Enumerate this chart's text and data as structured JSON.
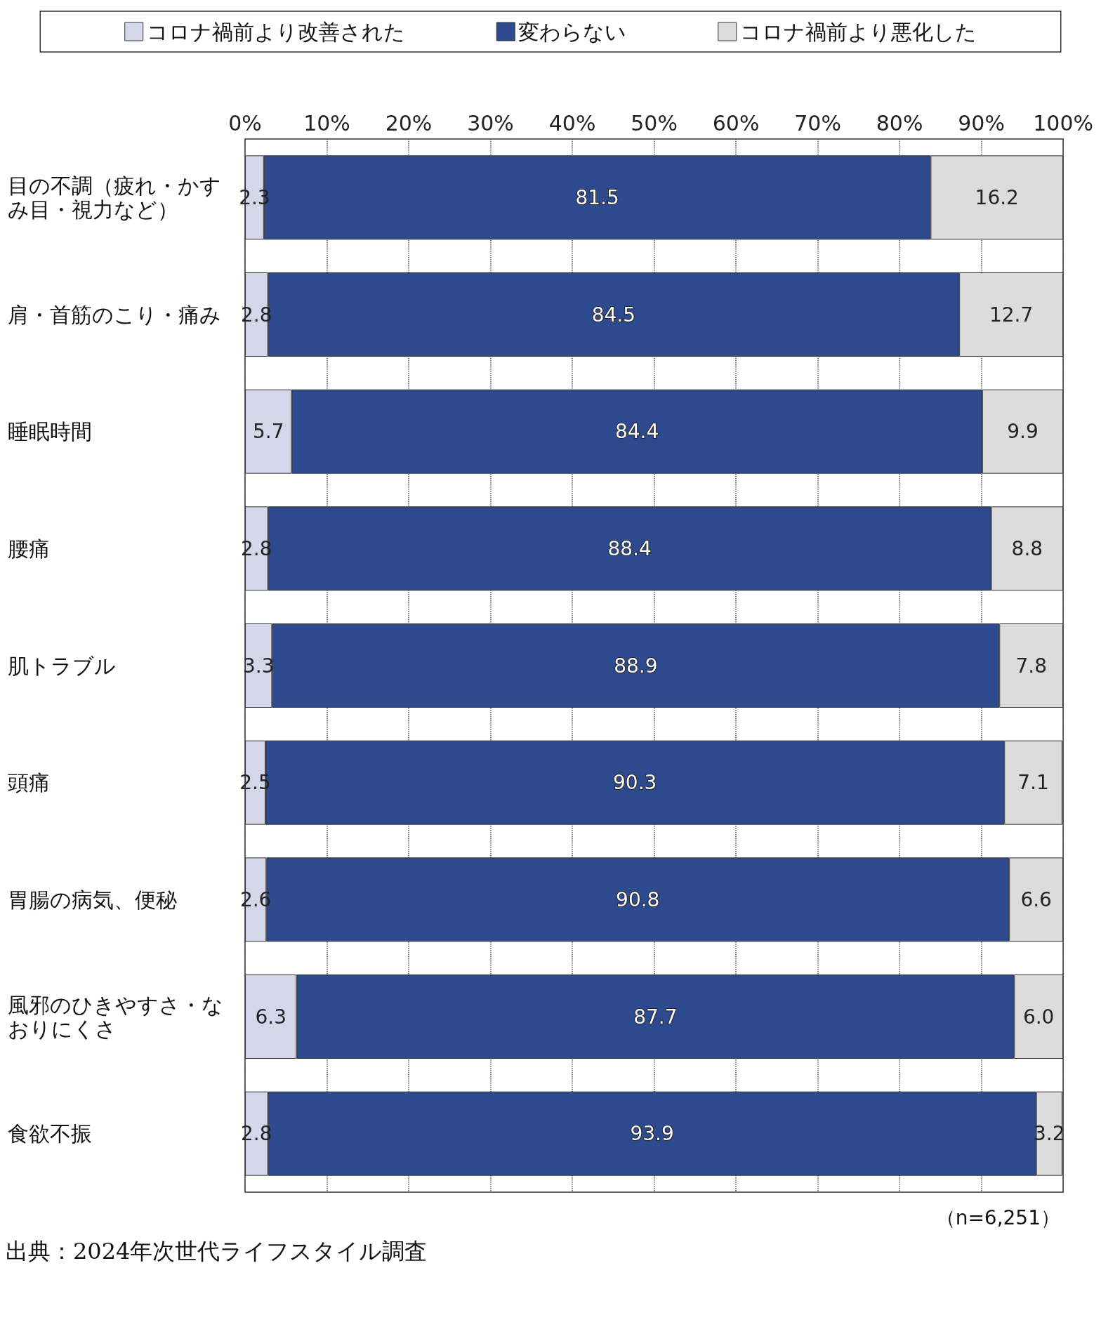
{
  "chart_data": {
    "type": "bar",
    "orientation": "horizontal",
    "stacked": true,
    "categories": [
      "目の不調（疲れ・かすみ目・視力など）",
      "肩・首筋のこり・痛み",
      "睡眠時間",
      "腰痛",
      "肌トラブル",
      "頭痛",
      "胃腸の病気、便秘",
      "風邪のひきやすさ・なおりにくさ",
      "食欲不振"
    ],
    "series": [
      {
        "name": "コロナ禍前より改善された",
        "color": "#d4d7ea",
        "values": [
          2.3,
          2.8,
          5.7,
          2.8,
          3.3,
          2.5,
          2.6,
          6.3,
          2.8
        ],
        "value_labels": [
          "2.3",
          "2.8",
          "5.7",
          "2.8",
          "3.3",
          "2.5",
          "2.6",
          "6.3",
          "2.8"
        ]
      },
      {
        "name": "変わらない",
        "color": "#2e4a8f",
        "values": [
          81.5,
          84.5,
          84.4,
          88.4,
          88.9,
          90.3,
          90.8,
          87.7,
          93.9
        ],
        "value_labels": [
          "81.5",
          "84.5",
          "84.4",
          "88.4",
          "88.9",
          "90.3",
          "90.8",
          "87.7",
          "93.9"
        ]
      },
      {
        "name": "コロナ禍前より悪化した",
        "color": "#dcdcdc",
        "values": [
          16.2,
          12.7,
          9.9,
          8.8,
          7.8,
          7.1,
          6.6,
          6.0,
          3.2
        ],
        "value_labels": [
          "16.2",
          "12.7",
          "9.9",
          "8.8",
          "7.8",
          "7.1",
          "6.6",
          "6.0",
          "3.2"
        ]
      }
    ],
    "xlim": [
      0,
      100
    ],
    "xticks": [
      {
        "value": 0,
        "label": "0%"
      },
      {
        "value": 10,
        "label": "10%"
      },
      {
        "value": 20,
        "label": "20%"
      },
      {
        "value": 30,
        "label": "30%"
      },
      {
        "value": 40,
        "label": "40%"
      },
      {
        "value": 50,
        "label": "50%"
      },
      {
        "value": 60,
        "label": "60%"
      },
      {
        "value": 70,
        "label": "70%"
      },
      {
        "value": 80,
        "label": "80%"
      },
      {
        "value": 90,
        "label": "90%"
      },
      {
        "value": 100,
        "label": "100%"
      }
    ],
    "grid": "x",
    "legend": "top",
    "annotations": [
      "（n=6,251）",
      "出典：2024年次世代ライフスタイル調査"
    ]
  }
}
